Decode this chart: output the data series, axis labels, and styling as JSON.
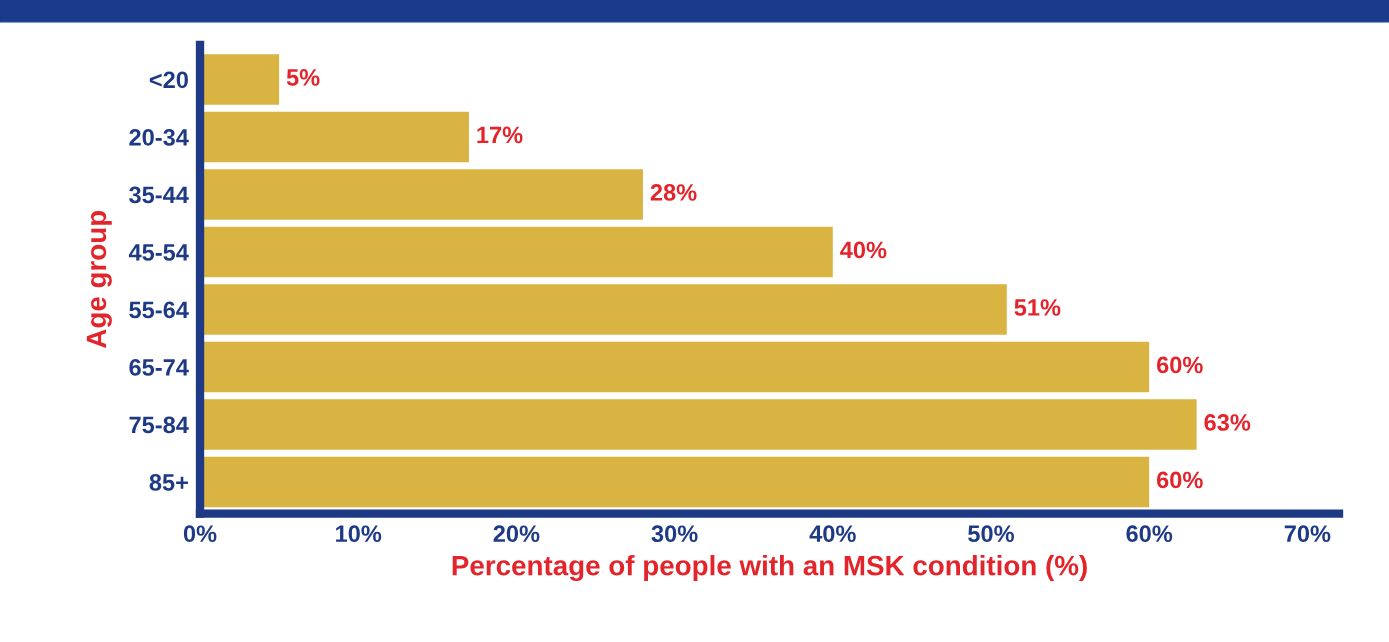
{
  "chart_data": {
    "type": "bar",
    "orientation": "horizontal",
    "xlabel": "Percentage of people with an MSK condition (%)",
    "ylabel": "Age group",
    "categories": [
      "<20",
      "20-34",
      "35-44",
      "45-54",
      "55-64",
      "65-74",
      "75-84",
      "85+"
    ],
    "values": [
      5,
      17,
      28,
      40,
      51,
      60,
      63,
      60
    ],
    "value_labels": [
      "5%",
      "17%",
      "28%",
      "40%",
      "51%",
      "60%",
      "63%",
      "60%"
    ],
    "color": "#d9b443",
    "xlim": [
      0,
      72
    ],
    "xticks": [
      {
        "value": 0,
        "label": "0%"
      },
      {
        "value": 10,
        "label": "10%"
      },
      {
        "value": 20,
        "label": "20%"
      },
      {
        "value": 30,
        "label": "30%"
      },
      {
        "value": 40,
        "label": "40%"
      },
      {
        "value": 50,
        "label": "50%"
      },
      {
        "value": 60,
        "label": "60%"
      },
      {
        "value": 70,
        "label": "70%"
      }
    ],
    "grid": false,
    "legend": false
  }
}
